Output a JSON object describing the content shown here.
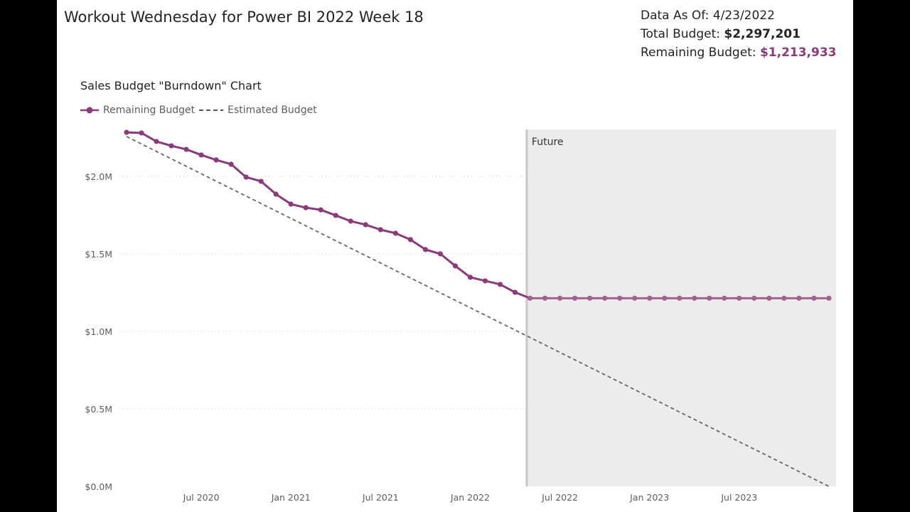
{
  "header": {
    "title": "Workout Wednesday for Power BI 2022 Week 18",
    "data_as_of_label": "Data As Of:",
    "data_as_of_value": "4/23/2022",
    "total_budget_label": "Total Budget:",
    "total_budget_value": "$2,297,201",
    "remaining_budget_label": "Remaining Budget:",
    "remaining_budget_value": "$1,213,933"
  },
  "colors": {
    "remaining": "#8b3a7a",
    "remaining_future": "#a2628f",
    "estimated": "#666666",
    "future_band": "#ececec",
    "future_line": "#c8c8c8"
  },
  "chart_data": {
    "type": "line",
    "title": "Sales Budget \"Burndown\" Chart",
    "xlabel": "",
    "ylabel": "",
    "ylim": [
      0,
      2.3
    ],
    "y_unit": "$M",
    "y_ticks": [
      "$0.0M",
      "$0.5M",
      "$1.0M",
      "$1.5M",
      "$2.0M"
    ],
    "x_ticks": [
      "Jul 2020",
      "Jan 2021",
      "Jul 2021",
      "Jan 2022",
      "Jul 2022",
      "Jan 2023",
      "Jul 2023"
    ],
    "x_start": "2020-02",
    "x_end": "2024-01",
    "grid": "horizontal dotted",
    "legend": "top-left",
    "future_annotation": {
      "label": "Future",
      "from": "2022-04-23"
    },
    "series": [
      {
        "name": "Remaining Budget",
        "style": "solid-markers",
        "values": [
          2.284,
          2.28,
          2.225,
          2.197,
          2.174,
          2.138,
          2.106,
          2.078,
          1.995,
          1.968,
          1.885,
          1.821,
          1.798,
          1.784,
          1.748,
          1.711,
          1.688,
          1.656,
          1.633,
          1.592,
          1.528,
          1.5,
          1.422,
          1.349,
          1.326,
          1.303,
          1.252,
          1.214,
          1.214,
          1.214,
          1.214,
          1.214,
          1.214,
          1.214,
          1.214,
          1.214,
          1.214,
          1.214,
          1.214,
          1.214,
          1.214,
          1.214,
          1.214,
          1.214,
          1.214,
          1.214,
          1.214,
          1.214
        ]
      },
      {
        "name": "Estimated Budget",
        "style": "dashed",
        "points": [
          {
            "x": "2020-02",
            "y": 2.257
          },
          {
            "x": "2024-01",
            "y": 0.0
          }
        ]
      }
    ]
  }
}
